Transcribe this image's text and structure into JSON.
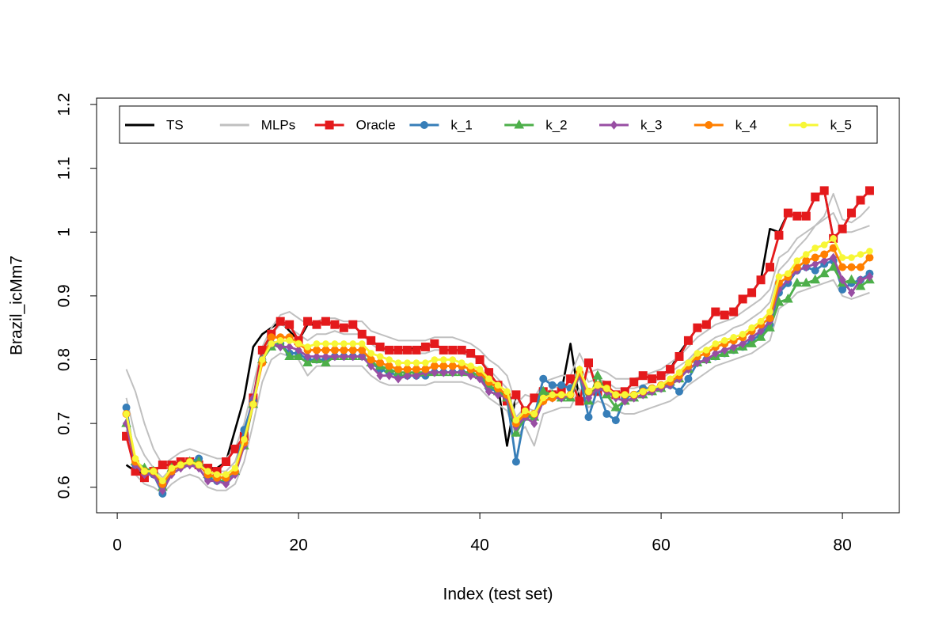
{
  "chart_data": {
    "type": "line",
    "x_label": "Index (test set)",
    "y_label": "Brazil_icMm7",
    "x": [
      1,
      2,
      3,
      4,
      5,
      6,
      7,
      8,
      9,
      10,
      11,
      12,
      13,
      14,
      15,
      16,
      17,
      18,
      19,
      20,
      21,
      22,
      23,
      24,
      25,
      26,
      27,
      28,
      29,
      30,
      31,
      32,
      33,
      34,
      35,
      36,
      37,
      38,
      39,
      40,
      41,
      42,
      43,
      44,
      45,
      46,
      47,
      48,
      49,
      50,
      51,
      52,
      53,
      54,
      55,
      56,
      57,
      58,
      59,
      60,
      61,
      62,
      63,
      64,
      65,
      66,
      67,
      68,
      69,
      70,
      71,
      72,
      73,
      74,
      75,
      76,
      77,
      78,
      79,
      80,
      81,
      82,
      83
    ],
    "xlim": [
      -2.28,
      86.28
    ],
    "xticks": [
      0,
      20,
      40,
      60,
      80
    ],
    "ylim": [
      0.56,
      1.21
    ],
    "yticks": [
      0.6,
      0.7,
      0.8,
      0.9,
      1.0,
      1.1,
      1.2
    ],
    "legend": "top",
    "series": [
      {
        "name": "TS",
        "color": "#000000",
        "marker": "none",
        "values": [
          0.635,
          0.625,
          0.62,
          0.625,
          0.635,
          0.635,
          0.64,
          0.64,
          0.635,
          0.63,
          0.63,
          0.64,
          0.69,
          0.74,
          0.82,
          0.84,
          0.85,
          0.86,
          0.845,
          0.83,
          0.855,
          0.855,
          0.86,
          0.855,
          0.85,
          0.855,
          0.84,
          0.83,
          0.82,
          0.815,
          0.815,
          0.815,
          0.82,
          0.82,
          0.825,
          0.815,
          0.815,
          0.815,
          0.81,
          0.8,
          0.78,
          0.76,
          0.665,
          0.745,
          0.72,
          0.74,
          0.75,
          0.745,
          0.75,
          0.825,
          0.735,
          0.795,
          0.75,
          0.76,
          0.745,
          0.75,
          0.765,
          0.775,
          0.77,
          0.775,
          0.785,
          0.81,
          0.83,
          0.85,
          0.855,
          0.875,
          0.87,
          0.875,
          0.895,
          0.905,
          0.925,
          1.005,
          1.0,
          1.03,
          1.025,
          1.025,
          1.055,
          1.065,
          0.99,
          1.005,
          1.03,
          1.05,
          1.065
        ]
      },
      {
        "name": "MLPs",
        "color": "#c0c0c0",
        "marker": "none",
        "values": [
          [
            0.785,
            0.75,
            0.7,
            0.66,
            0.635,
            0.645,
            0.655,
            0.66,
            0.655,
            0.65,
            0.645,
            0.645,
            0.66,
            0.7,
            0.76,
            0.82,
            0.85,
            0.87,
            0.875,
            0.865,
            0.855,
            0.86,
            0.865,
            0.865,
            0.86,
            0.86,
            0.86,
            0.845,
            0.84,
            0.835,
            0.83,
            0.83,
            0.83,
            0.83,
            0.835,
            0.835,
            0.835,
            0.83,
            0.825,
            0.815,
            0.8,
            0.79,
            0.775,
            0.73,
            0.745,
            0.74,
            0.765,
            0.77,
            0.775,
            0.775,
            0.81,
            0.78,
            0.785,
            0.78,
            0.77,
            0.77,
            0.77,
            0.775,
            0.78,
            0.785,
            0.795,
            0.805,
            0.82,
            0.835,
            0.845,
            0.855,
            0.86,
            0.865,
            0.875,
            0.885,
            0.895,
            0.91,
            0.96,
            0.97,
            0.99,
            1.0,
            1.01,
            1.02,
            1.03,
            1.0,
            1.0,
            1.005,
            1.01
          ],
          [
            0.69,
            0.62,
            0.605,
            0.6,
            0.59,
            0.605,
            0.615,
            0.62,
            0.615,
            0.6,
            0.595,
            0.595,
            0.605,
            0.64,
            0.7,
            0.765,
            0.8,
            0.81,
            0.805,
            0.8,
            0.775,
            0.79,
            0.79,
            0.79,
            0.79,
            0.79,
            0.79,
            0.775,
            0.765,
            0.76,
            0.76,
            0.76,
            0.76,
            0.76,
            0.765,
            0.765,
            0.765,
            0.765,
            0.76,
            0.755,
            0.74,
            0.73,
            0.72,
            0.68,
            0.695,
            0.665,
            0.715,
            0.72,
            0.725,
            0.725,
            0.755,
            0.725,
            0.735,
            0.73,
            0.72,
            0.715,
            0.715,
            0.72,
            0.725,
            0.73,
            0.735,
            0.745,
            0.76,
            0.77,
            0.78,
            0.79,
            0.795,
            0.8,
            0.805,
            0.81,
            0.82,
            0.83,
            0.88,
            0.89,
            0.905,
            0.91,
            0.915,
            0.92,
            0.925,
            0.9,
            0.895,
            0.9,
            0.905
          ],
          [
            0.74,
            0.68,
            0.65,
            0.63,
            0.615,
            0.63,
            0.64,
            0.645,
            0.64,
            0.63,
            0.625,
            0.625,
            0.64,
            0.685,
            0.745,
            0.805,
            0.84,
            0.855,
            0.85,
            0.84,
            0.83,
            0.84,
            0.84,
            0.845,
            0.84,
            0.84,
            0.84,
            0.825,
            0.815,
            0.81,
            0.81,
            0.81,
            0.81,
            0.81,
            0.815,
            0.815,
            0.815,
            0.81,
            0.805,
            0.8,
            0.785,
            0.77,
            0.755,
            0.71,
            0.725,
            0.72,
            0.745,
            0.755,
            0.76,
            0.76,
            0.79,
            0.765,
            0.77,
            0.765,
            0.755,
            0.755,
            0.755,
            0.76,
            0.765,
            0.77,
            0.78,
            0.79,
            0.8,
            0.815,
            0.825,
            0.835,
            0.84,
            0.85,
            0.855,
            0.865,
            0.875,
            0.89,
            0.94,
            0.955,
            0.975,
            0.99,
            1.01,
            1.025,
            1.06,
            1.02,
            1.015,
            1.025,
            1.04
          ]
        ]
      },
      {
        "name": "Oracle",
        "color": "#e41a1c",
        "marker": "square",
        "values": [
          0.68,
          0.625,
          0.615,
          0.625,
          0.635,
          0.635,
          0.64,
          0.64,
          0.635,
          0.63,
          0.625,
          0.64,
          0.66,
          0.68,
          0.74,
          0.815,
          0.84,
          0.86,
          0.855,
          0.83,
          0.86,
          0.855,
          0.86,
          0.855,
          0.85,
          0.855,
          0.84,
          0.83,
          0.82,
          0.815,
          0.815,
          0.815,
          0.815,
          0.82,
          0.825,
          0.815,
          0.815,
          0.815,
          0.81,
          0.8,
          0.78,
          0.76,
          0.735,
          0.745,
          0.72,
          0.74,
          0.75,
          0.745,
          0.75,
          0.77,
          0.735,
          0.795,
          0.75,
          0.76,
          0.745,
          0.75,
          0.765,
          0.775,
          0.77,
          0.775,
          0.785,
          0.805,
          0.83,
          0.85,
          0.855,
          0.875,
          0.87,
          0.875,
          0.895,
          0.905,
          0.925,
          0.945,
          0.995,
          1.03,
          1.025,
          1.025,
          1.055,
          1.065,
          0.99,
          1.005,
          1.03,
          1.05,
          1.065
        ]
      },
      {
        "name": "k_1",
        "color": "#377eb8",
        "marker": "circle",
        "values": [
          0.725,
          0.635,
          0.625,
          0.62,
          0.59,
          0.625,
          0.635,
          0.64,
          0.645,
          0.615,
          0.61,
          0.61,
          0.625,
          0.69,
          0.735,
          0.8,
          0.825,
          0.825,
          0.81,
          0.81,
          0.8,
          0.8,
          0.8,
          0.805,
          0.805,
          0.805,
          0.805,
          0.795,
          0.785,
          0.78,
          0.775,
          0.775,
          0.775,
          0.775,
          0.78,
          0.78,
          0.78,
          0.78,
          0.78,
          0.775,
          0.755,
          0.75,
          0.74,
          0.64,
          0.715,
          0.71,
          0.77,
          0.76,
          0.76,
          0.755,
          0.775,
          0.71,
          0.755,
          0.715,
          0.705,
          0.74,
          0.745,
          0.755,
          0.755,
          0.755,
          0.76,
          0.75,
          0.77,
          0.795,
          0.8,
          0.805,
          0.81,
          0.815,
          0.82,
          0.83,
          0.84,
          0.855,
          0.905,
          0.92,
          0.94,
          0.945,
          0.94,
          0.95,
          0.955,
          0.91,
          0.92,
          0.925,
          0.935
        ]
      },
      {
        "name": "k_2",
        "color": "#4daf4a",
        "marker": "triangle",
        "values": [
          0.7,
          0.64,
          0.63,
          0.625,
          0.6,
          0.63,
          0.635,
          0.64,
          0.64,
          0.62,
          0.615,
          0.615,
          0.625,
          0.665,
          0.73,
          0.8,
          0.82,
          0.825,
          0.805,
          0.805,
          0.795,
          0.8,
          0.795,
          0.805,
          0.805,
          0.805,
          0.805,
          0.795,
          0.79,
          0.785,
          0.78,
          0.78,
          0.78,
          0.78,
          0.78,
          0.78,
          0.78,
          0.78,
          0.78,
          0.775,
          0.76,
          0.75,
          0.74,
          0.685,
          0.71,
          0.71,
          0.75,
          0.745,
          0.74,
          0.74,
          0.775,
          0.735,
          0.775,
          0.745,
          0.725,
          0.735,
          0.74,
          0.745,
          0.75,
          0.755,
          0.765,
          0.77,
          0.785,
          0.795,
          0.8,
          0.805,
          0.81,
          0.815,
          0.82,
          0.825,
          0.835,
          0.85,
          0.89,
          0.895,
          0.92,
          0.92,
          0.925,
          0.935,
          0.945,
          0.92,
          0.925,
          0.915,
          0.925
        ]
      },
      {
        "name": "k_3",
        "color": "#984ea3",
        "marker": "diamond",
        "values": [
          0.7,
          0.635,
          0.62,
          0.62,
          0.595,
          0.62,
          0.63,
          0.635,
          0.63,
          0.61,
          0.61,
          0.605,
          0.62,
          0.665,
          0.74,
          0.8,
          0.825,
          0.82,
          0.82,
          0.815,
          0.805,
          0.805,
          0.805,
          0.805,
          0.805,
          0.805,
          0.805,
          0.79,
          0.775,
          0.775,
          0.77,
          0.775,
          0.775,
          0.78,
          0.78,
          0.78,
          0.78,
          0.78,
          0.775,
          0.77,
          0.75,
          0.745,
          0.74,
          0.695,
          0.71,
          0.7,
          0.735,
          0.74,
          0.74,
          0.745,
          0.775,
          0.74,
          0.755,
          0.75,
          0.74,
          0.735,
          0.74,
          0.745,
          0.75,
          0.755,
          0.76,
          0.77,
          0.785,
          0.795,
          0.8,
          0.81,
          0.815,
          0.82,
          0.825,
          0.835,
          0.845,
          0.86,
          0.91,
          0.925,
          0.94,
          0.945,
          0.95,
          0.955,
          0.96,
          0.925,
          0.905,
          0.925,
          0.93
        ]
      },
      {
        "name": "k_4",
        "color": "#ff7f00",
        "marker": "circle",
        "values": [
          0.715,
          0.64,
          0.625,
          0.625,
          0.605,
          0.625,
          0.635,
          0.64,
          0.635,
          0.62,
          0.615,
          0.615,
          0.625,
          0.67,
          0.73,
          0.795,
          0.835,
          0.835,
          0.835,
          0.825,
          0.815,
          0.815,
          0.815,
          0.815,
          0.815,
          0.815,
          0.815,
          0.8,
          0.795,
          0.79,
          0.785,
          0.785,
          0.785,
          0.785,
          0.79,
          0.79,
          0.79,
          0.79,
          0.785,
          0.78,
          0.765,
          0.755,
          0.745,
          0.7,
          0.715,
          0.715,
          0.735,
          0.74,
          0.745,
          0.745,
          0.78,
          0.75,
          0.76,
          0.755,
          0.745,
          0.745,
          0.745,
          0.75,
          0.755,
          0.76,
          0.765,
          0.775,
          0.79,
          0.805,
          0.81,
          0.82,
          0.825,
          0.83,
          0.835,
          0.845,
          0.855,
          0.865,
          0.92,
          0.93,
          0.945,
          0.955,
          0.96,
          0.965,
          0.975,
          0.945,
          0.945,
          0.945,
          0.96
        ]
      },
      {
        "name": "k_5",
        "color": "#f7f736",
        "marker": "dot",
        "values": [
          0.715,
          0.645,
          0.625,
          0.625,
          0.61,
          0.63,
          0.635,
          0.64,
          0.635,
          0.625,
          0.62,
          0.62,
          0.63,
          0.675,
          0.73,
          0.8,
          0.825,
          0.83,
          0.83,
          0.825,
          0.82,
          0.825,
          0.825,
          0.825,
          0.825,
          0.825,
          0.825,
          0.81,
          0.805,
          0.8,
          0.795,
          0.795,
          0.795,
          0.795,
          0.8,
          0.8,
          0.8,
          0.795,
          0.79,
          0.785,
          0.77,
          0.76,
          0.75,
          0.705,
          0.72,
          0.715,
          0.74,
          0.745,
          0.745,
          0.745,
          0.785,
          0.75,
          0.76,
          0.755,
          0.745,
          0.745,
          0.745,
          0.75,
          0.755,
          0.76,
          0.77,
          0.78,
          0.795,
          0.81,
          0.815,
          0.825,
          0.83,
          0.835,
          0.84,
          0.85,
          0.86,
          0.875,
          0.93,
          0.935,
          0.955,
          0.965,
          0.975,
          0.98,
          0.99,
          0.96,
          0.96,
          0.965,
          0.97
        ]
      }
    ]
  }
}
